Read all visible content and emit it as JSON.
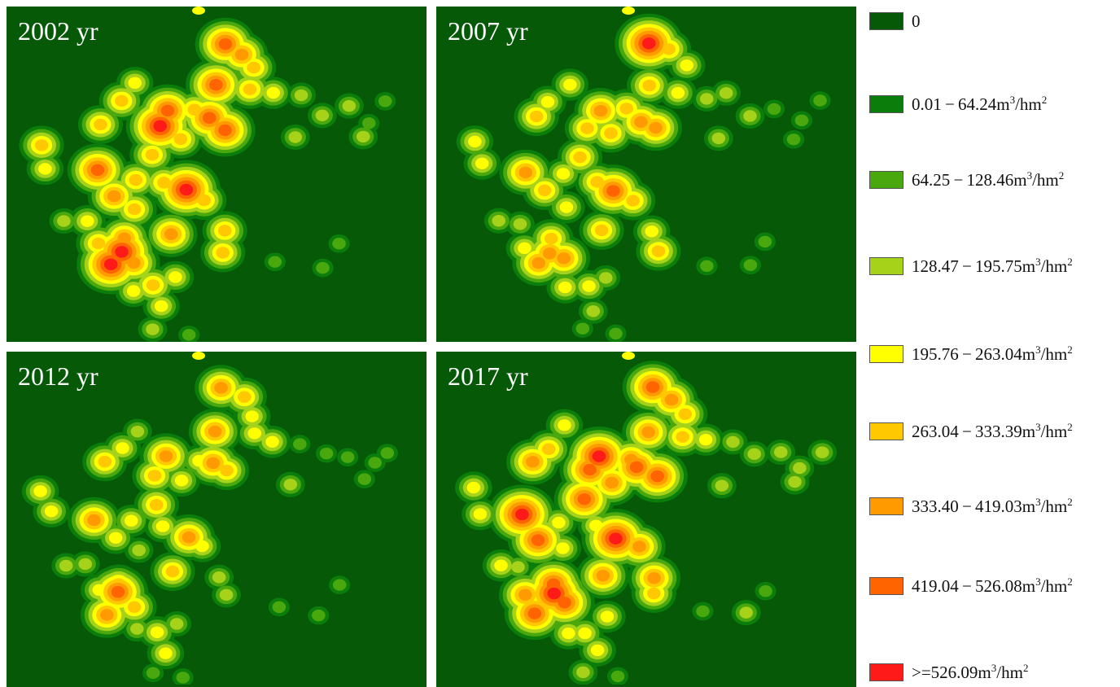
{
  "panels": [
    {
      "label": "2002 yr",
      "intensity": 1.0
    },
    {
      "label": "2007 yr",
      "intensity": 0.88
    },
    {
      "label": "2012 yr",
      "intensity": 0.82
    },
    {
      "label": "2017 yr",
      "intensity": 1.05
    }
  ],
  "legend": {
    "items": [
      {
        "range": "0",
        "unit": "",
        "color": "#065906"
      },
      {
        "range": "0.01 − 64.24m",
        "unit": "/hm",
        "color": "#0a7d0a"
      },
      {
        "range": "64.25 − 128.46m",
        "unit": "/hm",
        "color": "#4aa80f"
      },
      {
        "range": "128.47 − 195.75m",
        "unit": "/hm",
        "color": "#a6d21a"
      },
      {
        "range": "195.76 − 263.04m",
        "unit": "/hm",
        "color": "#ffff00"
      },
      {
        "range": "263.04 − 333.39m",
        "unit": "/hm",
        "color": "#ffc800"
      },
      {
        "range": "333.40 − 419.03m",
        "unit": "/hm",
        "color": "#ff9a00"
      },
      {
        "range": "419.04 − 526.08m",
        "unit": "/hm",
        "color": "#ff6400"
      },
      {
        "range": ">=526.09m",
        "unit": "/hm",
        "color": "#ff1a1a"
      }
    ],
    "sup_a": "3",
    "sup_b": "2"
  }
}
